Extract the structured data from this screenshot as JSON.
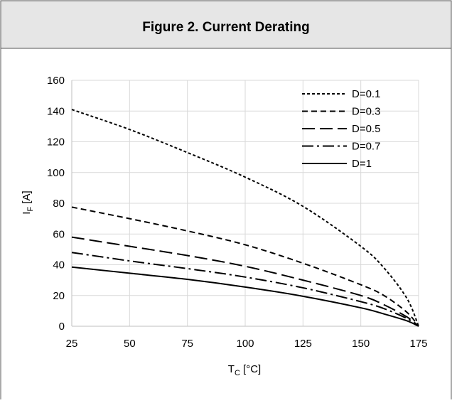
{
  "figure": {
    "title": "Figure 2. Current Derating"
  },
  "chart_data": {
    "type": "line",
    "xlabel_main": "T",
    "xlabel_sub": "C",
    "xlabel_unit": " [°C]",
    "ylabel_main": "I",
    "ylabel_sub": "F",
    "ylabel_unit": " [A]",
    "xlim": [
      25,
      175
    ],
    "ylim": [
      0,
      160
    ],
    "x_ticks": [
      25,
      50,
      75,
      100,
      125,
      150,
      175
    ],
    "y_ticks": [
      0,
      20,
      40,
      60,
      80,
      100,
      120,
      140,
      160
    ],
    "grid": true,
    "legend_position": "top-right",
    "series": [
      {
        "name": "D=0.1",
        "dash": "4,3",
        "x": [
          25,
          50,
          75,
          100,
          125,
          150,
          160,
          170,
          175
        ],
        "y": [
          141,
          128,
          113,
          97,
          78,
          52,
          38,
          18,
          0
        ]
      },
      {
        "name": "D=0.3",
        "dash": "8,5",
        "x": [
          25,
          50,
          75,
          100,
          125,
          150,
          160,
          170,
          175
        ],
        "y": [
          77.5,
          70,
          62,
          53,
          41,
          27,
          20,
          9,
          0
        ]
      },
      {
        "name": "D=0.5",
        "dash": "18,7",
        "x": [
          25,
          50,
          75,
          100,
          125,
          150,
          160,
          170,
          175
        ],
        "y": [
          58,
          52,
          46,
          39,
          30,
          20,
          14,
          6,
          0
        ]
      },
      {
        "name": "D=0.7",
        "dash": "16,5,3,5",
        "x": [
          25,
          50,
          75,
          100,
          125,
          150,
          160,
          170,
          175
        ],
        "y": [
          48,
          42.5,
          37.5,
          32,
          25,
          16,
          11.5,
          5,
          0
        ]
      },
      {
        "name": "D=1",
        "dash": "",
        "x": [
          25,
          50,
          75,
          100,
          125,
          150,
          160,
          170,
          175
        ],
        "y": [
          38.5,
          34.5,
          30.5,
          25.5,
          19.5,
          12,
          8,
          3.5,
          0
        ]
      }
    ]
  }
}
